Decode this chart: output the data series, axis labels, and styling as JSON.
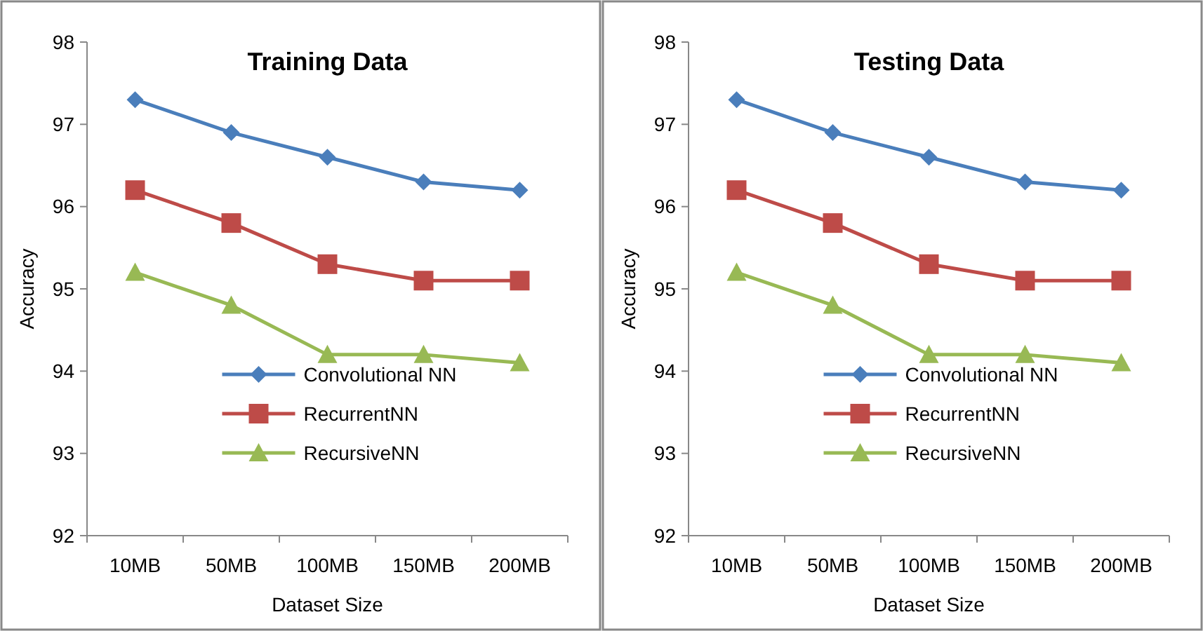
{
  "chart_data": [
    {
      "type": "line",
      "title": "Training Data",
      "xlabel": "Dataset Size",
      "ylabel": "Accuracy",
      "categories": [
        "10MB",
        "50MB",
        "100MB",
        "150MB",
        "200MB"
      ],
      "ylim": [
        92,
        98
      ],
      "yticks": [
        92,
        93,
        94,
        95,
        96,
        97,
        98
      ],
      "legend": "bottom",
      "grid": false,
      "series": [
        {
          "name": "Convolutional NN",
          "color": "#4a7ebb",
          "marker": "diamond",
          "values": [
            97.3,
            96.9,
            96.6,
            96.3,
            96.2
          ]
        },
        {
          "name": "RecurrentNN",
          "color": "#be4b48",
          "marker": "square",
          "values": [
            96.2,
            95.8,
            95.3,
            95.1,
            95.1
          ]
        },
        {
          "name": "RecursiveNN",
          "color": "#98b954",
          "marker": "triangle",
          "values": [
            95.2,
            94.8,
            94.2,
            94.2,
            94.1
          ]
        }
      ]
    },
    {
      "type": "line",
      "title": "Testing Data",
      "xlabel": "Dataset Size",
      "ylabel": "Accuracy",
      "categories": [
        "10MB",
        "50MB",
        "100MB",
        "150MB",
        "200MB"
      ],
      "ylim": [
        92,
        98
      ],
      "yticks": [
        92,
        93,
        94,
        95,
        96,
        97,
        98
      ],
      "legend": "bottom",
      "grid": false,
      "series": [
        {
          "name": "Convolutional NN",
          "color": "#4a7ebb",
          "marker": "diamond",
          "values": [
            97.3,
            96.9,
            96.6,
            96.3,
            96.2
          ]
        },
        {
          "name": "RecurrentNN",
          "color": "#be4b48",
          "marker": "square",
          "values": [
            96.2,
            95.8,
            95.3,
            95.1,
            95.1
          ]
        },
        {
          "name": "RecursiveNN",
          "color": "#98b954",
          "marker": "triangle",
          "values": [
            95.2,
            94.8,
            94.2,
            94.2,
            94.1
          ]
        }
      ]
    }
  ]
}
